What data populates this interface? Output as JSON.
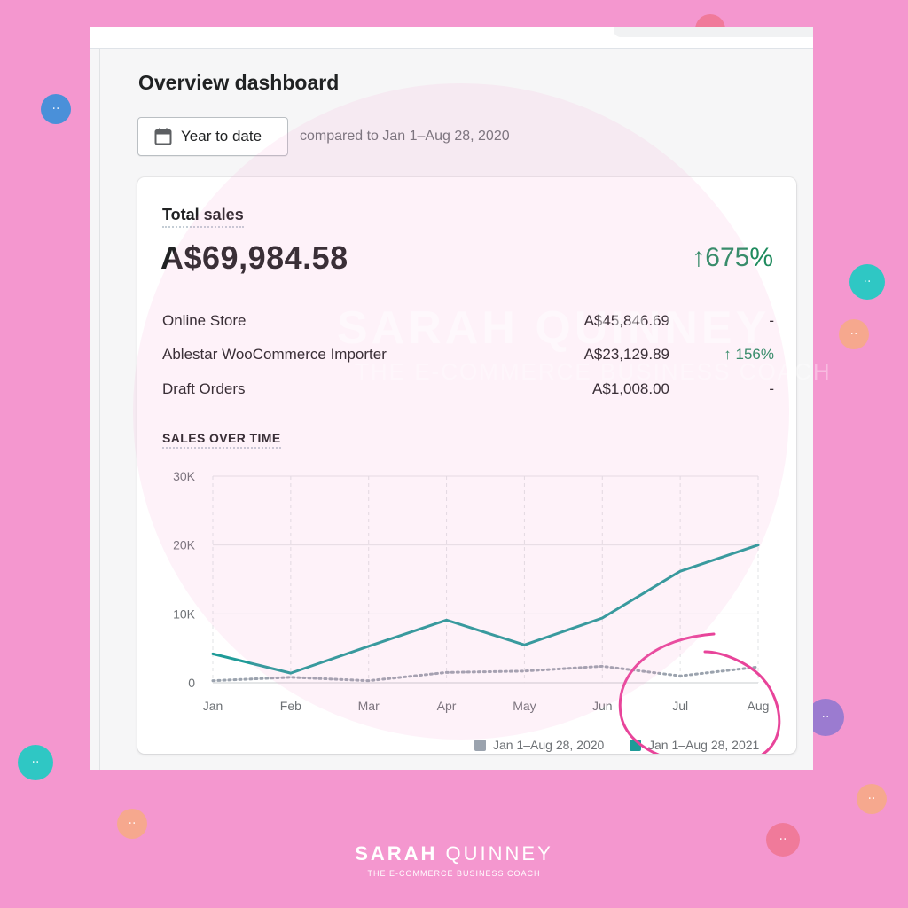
{
  "page": {
    "title": "Overview dashboard",
    "date_button_label": "Year to date",
    "compare_text": "compared to Jan 1–Aug 28, 2020"
  },
  "total_sales": {
    "title": "Total sales",
    "value": "A$69,984.58",
    "change": "675%",
    "change_direction": "up"
  },
  "breakdown": [
    {
      "channel": "Online Store",
      "value": "A$45,846.69",
      "change": "-"
    },
    {
      "channel": "Ablestar WooCommerce Importer",
      "value": "A$23,129.89",
      "change": "156%",
      "change_direction": "up"
    },
    {
      "channel": "Draft Orders",
      "value": "A$1,008.00",
      "change": "-"
    }
  ],
  "chart_data": {
    "type": "line",
    "title": "SALES OVER TIME",
    "categories": [
      "Jan",
      "Feb",
      "Mar",
      "Apr",
      "May",
      "Jun",
      "Jul",
      "Aug"
    ],
    "y_tick_labels": [
      "0",
      "10K",
      "20K",
      "30K"
    ],
    "ylim": [
      0,
      30000
    ],
    "grid": true,
    "legend_position": "bottom-right",
    "series": [
      {
        "name": "Jan 1–Aug 28, 2020",
        "values": [
          300,
          800,
          300,
          1500,
          1700,
          2400,
          1000,
          2300
        ],
        "color": "#9ba3ae",
        "style": "dotted"
      },
      {
        "name": "Jan 1–Aug 28, 2021",
        "values": [
          4200,
          1400,
          5300,
          9100,
          5500,
          9400,
          16200,
          20000
        ],
        "color": "#1f9b98",
        "style": "solid"
      }
    ]
  },
  "colors": {
    "background": "#f497cf",
    "positive": "#1f8b5e",
    "highlight_circle": "#e8449a"
  },
  "branding": {
    "watermark_name": "SARAH QUINNEY",
    "watermark_sub": "THE E-COMMERCE BUSINESS COACH",
    "footer_first": "SARAH",
    "footer_last": "QUINNEY",
    "footer_sub": "THE E-COMMERCE BUSINESS COACH"
  },
  "icons": {
    "date_button": "calendar-icon",
    "change": "arrow-up-icon",
    "decoration": "cart-icon"
  }
}
